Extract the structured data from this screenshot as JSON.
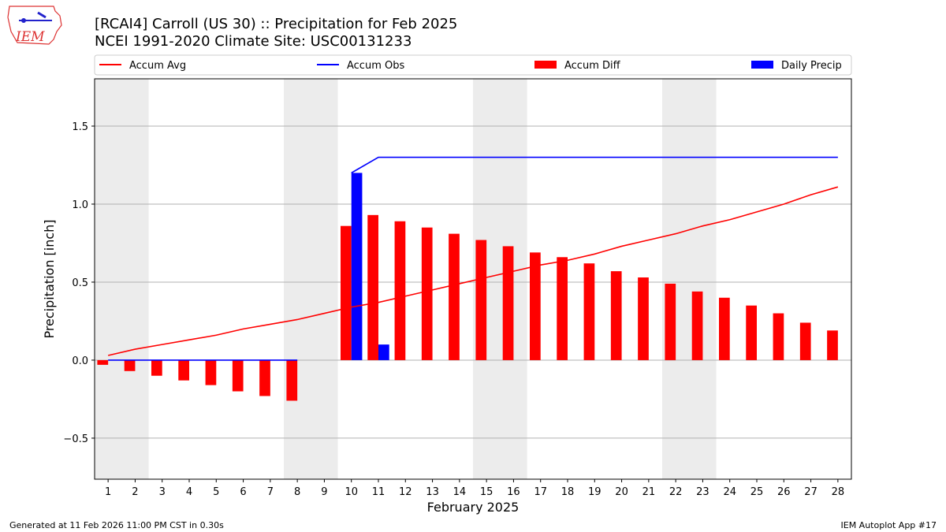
{
  "header": {
    "title_line1": "[RCAI4] Carroll (US 30) :: Precipitation for Feb 2025",
    "title_line2": "NCEI 1991-2020 Climate Site: USC00131233",
    "logo_text": "IEM"
  },
  "footer": {
    "generated": "Generated at 11 Feb 2026 11:00 PM CST in 0.30s",
    "app": "IEM Autoplot App #17"
  },
  "chart_data": {
    "type": "bar",
    "xlabel": "February 2025",
    "ylabel": "Precipitation [inch]",
    "xlim": [
      0.5,
      28.5
    ],
    "ylim": [
      -0.763,
      1.803
    ],
    "yticks": [
      -0.5,
      0.0,
      0.5,
      1.0,
      1.5
    ],
    "ytick_labels": [
      "−0.5",
      "0.0",
      "0.5",
      "1.0",
      "1.5"
    ],
    "grid": "y",
    "legend_placement": "top",
    "weekend_shading": [
      [
        0.5,
        2.5
      ],
      [
        7.5,
        9.5
      ],
      [
        14.5,
        16.5
      ],
      [
        21.5,
        23.5
      ]
    ],
    "days": [
      1,
      2,
      3,
      4,
      5,
      6,
      7,
      8,
      9,
      10,
      11,
      12,
      13,
      14,
      15,
      16,
      17,
      18,
      19,
      20,
      21,
      22,
      23,
      24,
      25,
      26,
      27,
      28
    ],
    "series": [
      {
        "name": "Accum Avg",
        "kind": "line",
        "color": "#ff0000",
        "values": [
          0.03,
          0.07,
          0.1,
          0.13,
          0.16,
          0.2,
          0.23,
          0.26,
          0.3,
          0.34,
          0.37,
          0.41,
          0.45,
          0.49,
          0.53,
          0.57,
          0.61,
          0.64,
          0.68,
          0.73,
          0.77,
          0.81,
          0.86,
          0.9,
          0.95,
          1.0,
          1.06,
          1.11
        ]
      },
      {
        "name": "Accum Obs",
        "kind": "line",
        "color": "#0000ff",
        "values": [
          0,
          0,
          0,
          0,
          0,
          0,
          0,
          0,
          null,
          1.2,
          1.3,
          1.3,
          1.3,
          1.3,
          1.3,
          1.3,
          1.3,
          1.3,
          1.3,
          1.3,
          1.3,
          1.3,
          1.3,
          1.3,
          1.3,
          1.3,
          1.3,
          1.3
        ]
      },
      {
        "name": "Accum Diff",
        "kind": "bar",
        "color": "#ff0000",
        "values": [
          -0.03,
          -0.07,
          -0.1,
          -0.13,
          -0.16,
          -0.2,
          -0.23,
          -0.26,
          null,
          0.86,
          0.93,
          0.89,
          0.85,
          0.81,
          0.77,
          0.73,
          0.69,
          0.66,
          0.62,
          0.57,
          0.53,
          0.49,
          0.44,
          0.4,
          0.35,
          0.3,
          0.24,
          0.19
        ]
      },
      {
        "name": "Daily Precip",
        "kind": "bar",
        "color": "#0000ff",
        "values": [
          0,
          0,
          0,
          0,
          0,
          0,
          0,
          0,
          null,
          1.2,
          0.1,
          0,
          0,
          0,
          0,
          0,
          0,
          0,
          0,
          0,
          0,
          0,
          0,
          0,
          0,
          0,
          0,
          0
        ]
      }
    ]
  }
}
